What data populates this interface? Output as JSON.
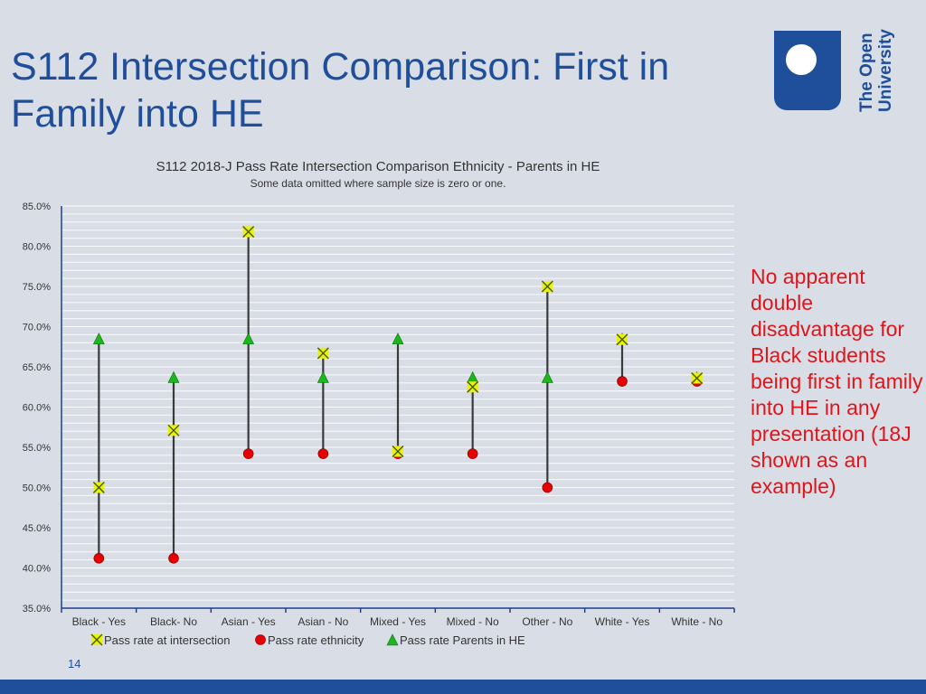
{
  "slide": {
    "title_line1": "S112 Intersection Comparison: First in",
    "title_line2": "Family into HE",
    "page_number": "14",
    "logo_text_line1": "The Open",
    "logo_text_line2": "University",
    "note": "No apparent double disadvantage for Black students being first in family into HE in any presentation (18J shown as an example)"
  },
  "colors": {
    "title": "#1f4e9a",
    "note": "#e0141b",
    "intersection_marker": "#e8f20a",
    "ethnicity_marker": "#e80000",
    "parents_marker": "#1ab81a",
    "range_line": "#3a3a3a",
    "axis": "#1f3f8f"
  },
  "chart_data": {
    "type": "scatter",
    "title": "S112 2018-J Pass Rate Intersection Comparison Ethnicity - Parents in HE",
    "subtitle": "Some data omitted where sample size is zero or one.",
    "categories": [
      "Black - Yes",
      "Black- No",
      "Asian - Yes",
      "Asian - No",
      "Mixed - Yes",
      "Mixed - No",
      "Other - No",
      "White - Yes",
      "White - No"
    ],
    "series": [
      {
        "name": "Pass rate at intersection",
        "marker": "x",
        "values": [
          50.0,
          57.1,
          81.8,
          66.7,
          54.5,
          62.5,
          75.0,
          68.4,
          63.6
        ]
      },
      {
        "name": "Pass rate ethnicity",
        "marker": "circle",
        "values": [
          41.2,
          41.2,
          54.2,
          54.2,
          54.2,
          54.2,
          50.0,
          63.2,
          63.2
        ]
      },
      {
        "name": "Pass rate Parents in HE",
        "marker": "triangle",
        "values": [
          68.4,
          63.6,
          68.4,
          63.6,
          68.4,
          63.6,
          63.6,
          68.4,
          63.6
        ]
      }
    ],
    "ylim": [
      35,
      85
    ],
    "yticks": [
      "35.0%",
      "40.0%",
      "45.0%",
      "50.0%",
      "55.0%",
      "60.0%",
      "65.0%",
      "70.0%",
      "75.0%",
      "80.0%",
      "85.0%"
    ],
    "grid": true,
    "legend_position": "bottom"
  }
}
